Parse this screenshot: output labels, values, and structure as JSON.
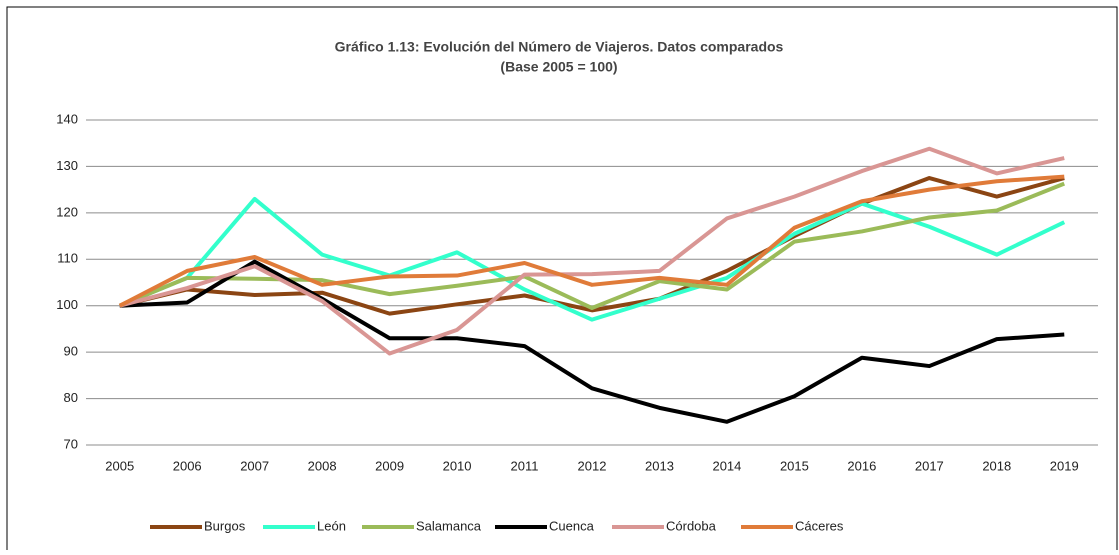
{
  "chart_data": {
    "type": "line",
    "title": "Gráfico 1.13: Evolución del Número de Viajeros. Datos comparados",
    "subtitle": "(Base 2005 = 100)",
    "categories": [
      "2005",
      "2006",
      "2007",
      "2008",
      "2009",
      "2010",
      "2011",
      "2012",
      "2013",
      "2014",
      "2015",
      "2016",
      "2017",
      "2018",
      "2019"
    ],
    "series": [
      {
        "name": "Burgos",
        "color": "#8B4513",
        "values": [
          100,
          103.5,
          102.3,
          102.8,
          98.3,
          100.3,
          102.2,
          99,
          101.5,
          107.5,
          115,
          122,
          127.5,
          123.5,
          127.5
        ]
      },
      {
        "name": "León",
        "color": "#33FFCC",
        "values": [
          100,
          106,
          123,
          111,
          106.5,
          111.5,
          103.5,
          97,
          101.5,
          106,
          115.5,
          122,
          117,
          111,
          118
        ]
      },
      {
        "name": "Salamanca",
        "color": "#9BBB59",
        "values": [
          100,
          106,
          105.8,
          105.5,
          102.5,
          104.3,
          106.3,
          99.5,
          105.3,
          103.5,
          113.8,
          116,
          119,
          120.5,
          126.3
        ]
      },
      {
        "name": "Cuenca",
        "color": "#000000",
        "values": [
          100,
          100.7,
          109.5,
          101.5,
          93,
          93,
          91.3,
          82.2,
          78,
          75,
          80.5,
          88.8,
          87,
          92.8,
          93.8
        ]
      },
      {
        "name": "Córdoba",
        "color": "#D99694",
        "values": [
          100,
          103.8,
          108.5,
          101,
          89.7,
          94.8,
          106.7,
          106.8,
          107.5,
          118.8,
          123.5,
          129,
          133.8,
          128.5,
          131.8
        ]
      },
      {
        "name": "Cáceres",
        "color": "#E07B39",
        "values": [
          100,
          107.5,
          110.5,
          104.5,
          106.3,
          106.5,
          109.2,
          104.5,
          106,
          104.5,
          116.8,
          122.5,
          125,
          126.8,
          127.8
        ]
      }
    ],
    "ylim": [
      70,
      140
    ],
    "yticks": [
      70,
      80,
      90,
      100,
      110,
      120,
      130,
      140
    ],
    "grid": true,
    "legend": "bottom"
  }
}
